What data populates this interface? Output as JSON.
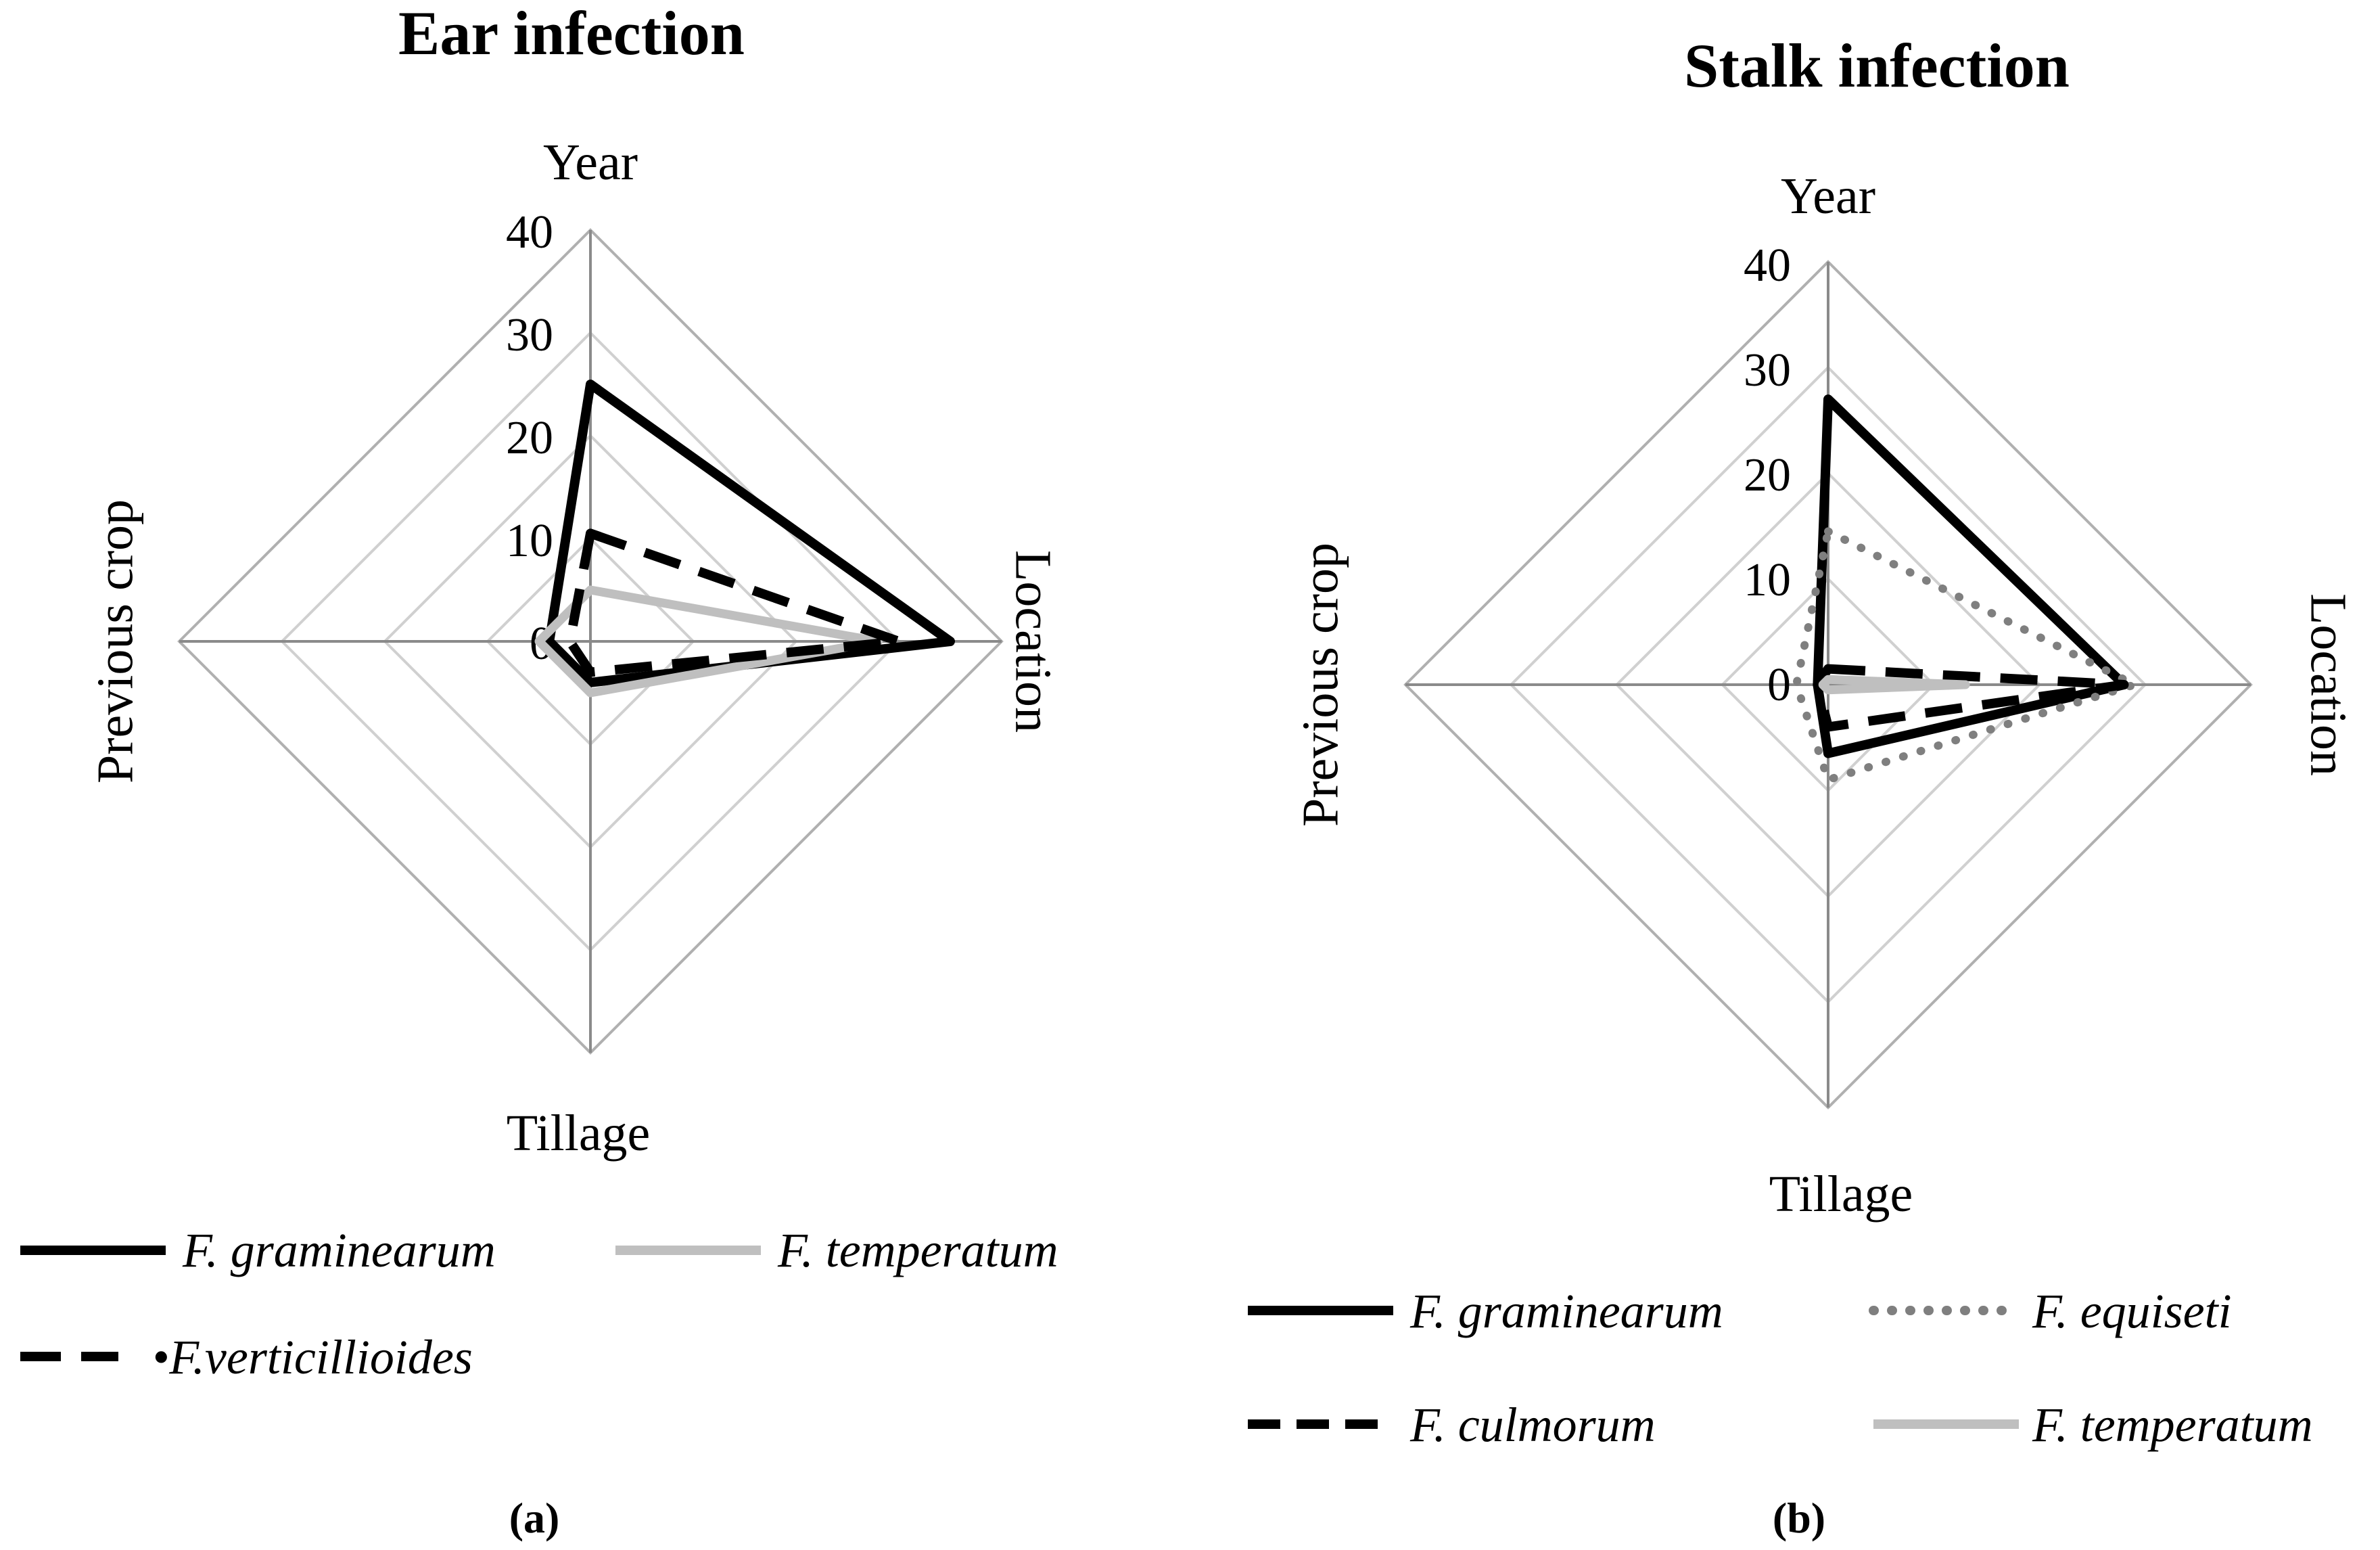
{
  "colors": {
    "black": "#000000",
    "light_gray": "#bfbfbf",
    "mid_gray": "#7f7f7f",
    "grid": "#d0d0d0",
    "axis": "#8a8a8a"
  },
  "chart_data": [
    {
      "type": "radar",
      "title": "Ear infection",
      "panel_label": "(a)",
      "axes": [
        "Year",
        "Location",
        "Tillage",
        "Previous  crop"
      ],
      "ticks": [
        "0",
        "10",
        "20",
        "30",
        "40"
      ],
      "rlim": [
        0,
        40
      ],
      "grid": true,
      "legend_position": "bottom",
      "series": [
        {
          "name": "F. graminearum",
          "legend_label": "F. graminearum",
          "values": [
            25,
            35,
            4,
            4
          ],
          "color": "#000000",
          "style": "solid"
        },
        {
          "name": "F. temperatum",
          "legend_label": "F. temperatum",
          "values": [
            5,
            28,
            5,
            5
          ],
          "color": "#bfbfbf",
          "style": "solid"
        },
        {
          "name": "F. verticillioides",
          "legend_label": "•F.verticillioides",
          "values": [
            10.5,
            30,
            3,
            2
          ],
          "color": "#000000",
          "style": "dashed"
        }
      ]
    },
    {
      "type": "radar",
      "title": "Stalk infection",
      "panel_label": "(b)",
      "axes": [
        "Year",
        "Location",
        "Tillage",
        "Previous  crop"
      ],
      "ticks": [
        "0",
        "10",
        "20",
        "30",
        "40"
      ],
      "rlim": [
        0,
        40
      ],
      "grid": true,
      "legend_position": "bottom",
      "series": [
        {
          "name": "F. graminearum",
          "legend_label": "F. graminearum",
          "values": [
            27,
            28,
            6.5,
            1
          ],
          "color": "#000000",
          "style": "solid"
        },
        {
          "name": "F. equiseti",
          "legend_label": "F. equiseti",
          "values": [
            14.5,
            29,
            9,
            3
          ],
          "color": "#7f7f7f",
          "style": "dotted"
        },
        {
          "name": "F. culmorum",
          "legend_label": "F. culmorum",
          "values": [
            1.5,
            28,
            4,
            1
          ],
          "color": "#000000",
          "style": "dashed"
        },
        {
          "name": "F. temperatum",
          "legend_label": "F. temperatum",
          "values": [
            0.5,
            13,
            0.5,
            0.5
          ],
          "color": "#bfbfbf",
          "style": "solid"
        }
      ]
    }
  ]
}
